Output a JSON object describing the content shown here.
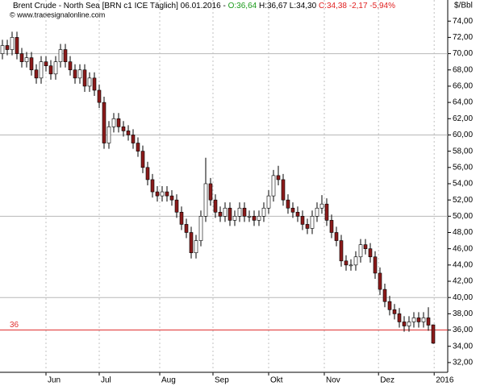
{
  "header": {
    "title": "Brent Crude - North Sea [BRN c1 ICE  Täglich] 06.01.2016 -",
    "open": "O:36,64",
    "high_low": "H:36,67 L:34,30",
    "close": "C:34,38 -2,17 -5,94%",
    "source": "© www.tradesignalonline.com"
  },
  "chart_data": {
    "type": "candlestick",
    "y_label": "$/Bbl",
    "open": [
      70,
      71,
      70.5,
      72,
      70,
      69,
      69.5,
      68,
      67,
      69,
      68.5,
      67.5,
      69,
      70.5,
      69,
      68,
      67,
      68,
      66,
      67,
      65.5,
      64,
      59,
      61,
      62,
      61,
      60.5,
      60,
      59,
      58,
      56,
      54.5,
      53,
      52.5,
      53,
      52.5,
      52,
      50.5,
      49,
      48,
      45.5,
      47,
      50,
      54,
      52,
      50.5,
      50,
      51,
      49.5,
      50,
      51,
      50,
      50,
      49.5,
      50,
      51,
      52.5,
      55,
      54.5,
      52,
      51,
      50.5,
      50,
      49,
      48.5,
      50,
      51,
      51.5,
      49.5,
      48,
      47,
      44.5,
      44,
      44,
      45,
      46.5,
      46,
      45,
      43,
      41,
      39.5,
      38.5,
      38,
      37,
      36.5,
      37,
      37.5,
      37,
      37.5,
      36.64
    ],
    "high": [
      71.7,
      71.7,
      72.7,
      72.7,
      70.7,
      70.2,
      70.2,
      68.7,
      69.7,
      69.7,
      69.2,
      69.7,
      71.2,
      71.2,
      69.7,
      68.7,
      68.7,
      68.7,
      67.7,
      67.7,
      66.2,
      64.7,
      61.7,
      62.7,
      62.7,
      61.7,
      61.2,
      60.7,
      59.7,
      58.7,
      56.7,
      55.2,
      53.7,
      53.7,
      53.7,
      53.2,
      52.7,
      51.2,
      49.7,
      48.7,
      47.7,
      50.7,
      57.2,
      54.7,
      52.7,
      51.2,
      51.7,
      51.7,
      50.7,
      51.7,
      51.7,
      50.7,
      50.7,
      50.7,
      51.7,
      53.2,
      55.7,
      56.2,
      55.2,
      52.7,
      51.7,
      51.2,
      50.7,
      49.7,
      50.7,
      51.7,
      52.6,
      52.2,
      50.2,
      48.7,
      47.7,
      45.2,
      44.7,
      45.7,
      47.2,
      47.2,
      46.7,
      45.7,
      43.7,
      41.7,
      40.2,
      39.2,
      38.7,
      37.7,
      37.7,
      38.2,
      38.2,
      38.2,
      38.8,
      36.67
    ],
    "low": [
      69.3,
      69.8,
      69.8,
      69.3,
      68.3,
      68.3,
      67.3,
      66.3,
      66.3,
      67.8,
      66.8,
      66.8,
      68.3,
      68.3,
      67.3,
      66.3,
      66.3,
      65.3,
      65.3,
      64.8,
      63.3,
      58.3,
      58.3,
      60.3,
      60.3,
      59.8,
      59.3,
      58.3,
      57.3,
      55.3,
      53.8,
      52.3,
      51.8,
      51.8,
      51.8,
      51.3,
      49.8,
      48.3,
      47.3,
      44.8,
      44.8,
      46.3,
      49.3,
      51.3,
      49.8,
      49.3,
      49.3,
      48.8,
      48.8,
      49.3,
      49.3,
      49.3,
      48.8,
      48.8,
      49.3,
      50.3,
      51.8,
      53.8,
      51.3,
      50.3,
      49.8,
      49.3,
      48.3,
      47.8,
      47.8,
      49.3,
      50.3,
      48.8,
      47.3,
      46.3,
      43.8,
      43.3,
      43.3,
      43.3,
      44.3,
      45.3,
      44.3,
      42.3,
      40.3,
      38.8,
      37.8,
      37.3,
      36.3,
      35.8,
      35.8,
      36.3,
      36.3,
      36.3,
      35.9,
      34.3
    ],
    "close": [
      71,
      70.5,
      72,
      70,
      69,
      69.5,
      68,
      67,
      69,
      68.5,
      67.5,
      69,
      70.5,
      69,
      68,
      67,
      68,
      66,
      67,
      65.5,
      64,
      59,
      61,
      62,
      61,
      60.5,
      60,
      59,
      58,
      56,
      54.5,
      53,
      52.5,
      53,
      52.5,
      52,
      50.5,
      49,
      48,
      45.5,
      47,
      50,
      54,
      52,
      50.5,
      50,
      51,
      49.5,
      50,
      51,
      50,
      50,
      49.5,
      50,
      51,
      52.5,
      55,
      54.5,
      52,
      51,
      50.5,
      50,
      49,
      48.5,
      50,
      51,
      51.5,
      49.5,
      48,
      47,
      44.5,
      44,
      44,
      45,
      46.5,
      46,
      45,
      43,
      41,
      39.5,
      38.5,
      38,
      37,
      36.5,
      37,
      37.5,
      37,
      37.5,
      36.6,
      34.38
    ],
    "up_color": "#ffffff",
    "down_color": "#8b1a1a",
    "wick_color": "#000000",
    "ylim": [
      30.8,
      76.6
    ],
    "yticks": [
      {
        "value": 32,
        "label": "32,00"
      },
      {
        "value": 34,
        "label": "34,00"
      },
      {
        "value": 36,
        "label": "36,00"
      },
      {
        "value": 38,
        "label": "38,00"
      },
      {
        "value": 40,
        "label": "40,00"
      },
      {
        "value": 42,
        "label": "42,00"
      },
      {
        "value": 44,
        "label": "44,00"
      },
      {
        "value": 46,
        "label": "46,00"
      },
      {
        "value": 48,
        "label": "48,00"
      },
      {
        "value": 50,
        "label": "50,00"
      },
      {
        "value": 52,
        "label": "52,00"
      },
      {
        "value": 54,
        "label": "54,00"
      },
      {
        "value": 56,
        "label": "56,00"
      },
      {
        "value": 58,
        "label": "58,00"
      },
      {
        "value": 60,
        "label": "60,00"
      },
      {
        "value": 62,
        "label": "62,00"
      },
      {
        "value": 64,
        "label": "64,00"
      },
      {
        "value": 66,
        "label": "66,00"
      },
      {
        "value": 68,
        "label": "68,00"
      },
      {
        "value": 70,
        "label": "70,00"
      },
      {
        "value": 72,
        "label": "72,00"
      },
      {
        "value": 74,
        "label": "74,00"
      }
    ],
    "grid_step": 10,
    "xticks": [
      {
        "value": 9,
        "label": "Jun"
      },
      {
        "value": 20,
        "label": "Jul"
      },
      {
        "value": 32.5,
        "label": "Aug"
      },
      {
        "value": 43.5,
        "label": "Sep"
      },
      {
        "value": 55,
        "label": "Okt"
      },
      {
        "value": 66.5,
        "label": "Nov"
      },
      {
        "value": 77.7,
        "label": "Dez"
      },
      {
        "value": 89.2,
        "label": "2016"
      }
    ],
    "hline": 36,
    "hline_color": "#e03030"
  }
}
